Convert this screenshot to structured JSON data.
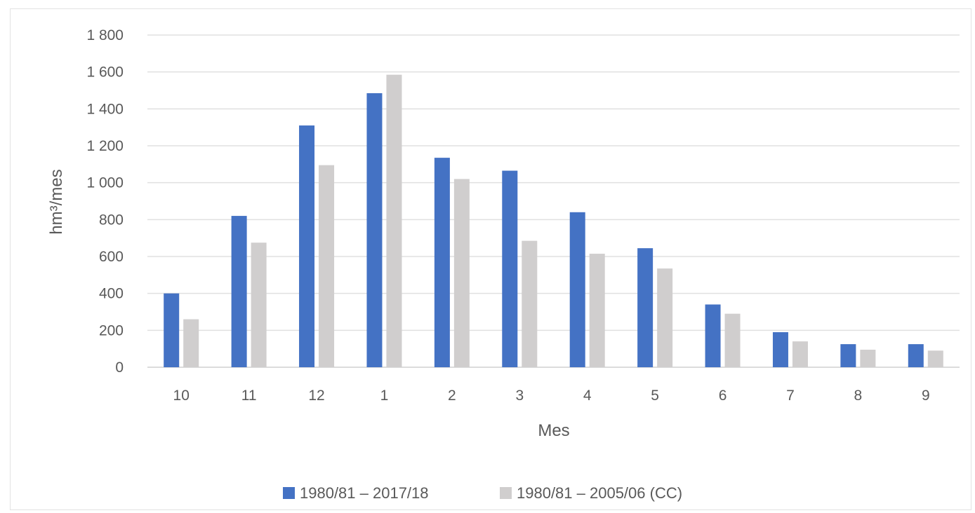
{
  "chart_data": {
    "type": "bar",
    "categories": [
      "10",
      "11",
      "12",
      "1",
      "2",
      "3",
      "4",
      "5",
      "6",
      "7",
      "8",
      "9"
    ],
    "series": [
      {
        "name": "1980/81 – 2017/18",
        "color": "#4472c4",
        "values": [
          400,
          820,
          1310,
          1485,
          1135,
          1065,
          840,
          645,
          340,
          190,
          125,
          125
        ]
      },
      {
        "name": "1980/81 – 2005/06 (CC)",
        "color": "#d0cece",
        "values": [
          260,
          675,
          1095,
          1585,
          1020,
          685,
          615,
          535,
          290,
          140,
          95,
          90
        ]
      }
    ],
    "xlabel": "Mes",
    "ylabel": "hm³/mes",
    "ylim": [
      0,
      1800
    ],
    "yticks": [
      0,
      200,
      400,
      600,
      800,
      1000,
      1200,
      1400,
      1600,
      1800
    ],
    "ytick_labels": [
      "0",
      "200",
      "400",
      "600",
      "800",
      "1 000",
      "1 200",
      "1 400",
      "1 600",
      "1 800"
    ],
    "grid": true,
    "legend_position": "bottom"
  }
}
